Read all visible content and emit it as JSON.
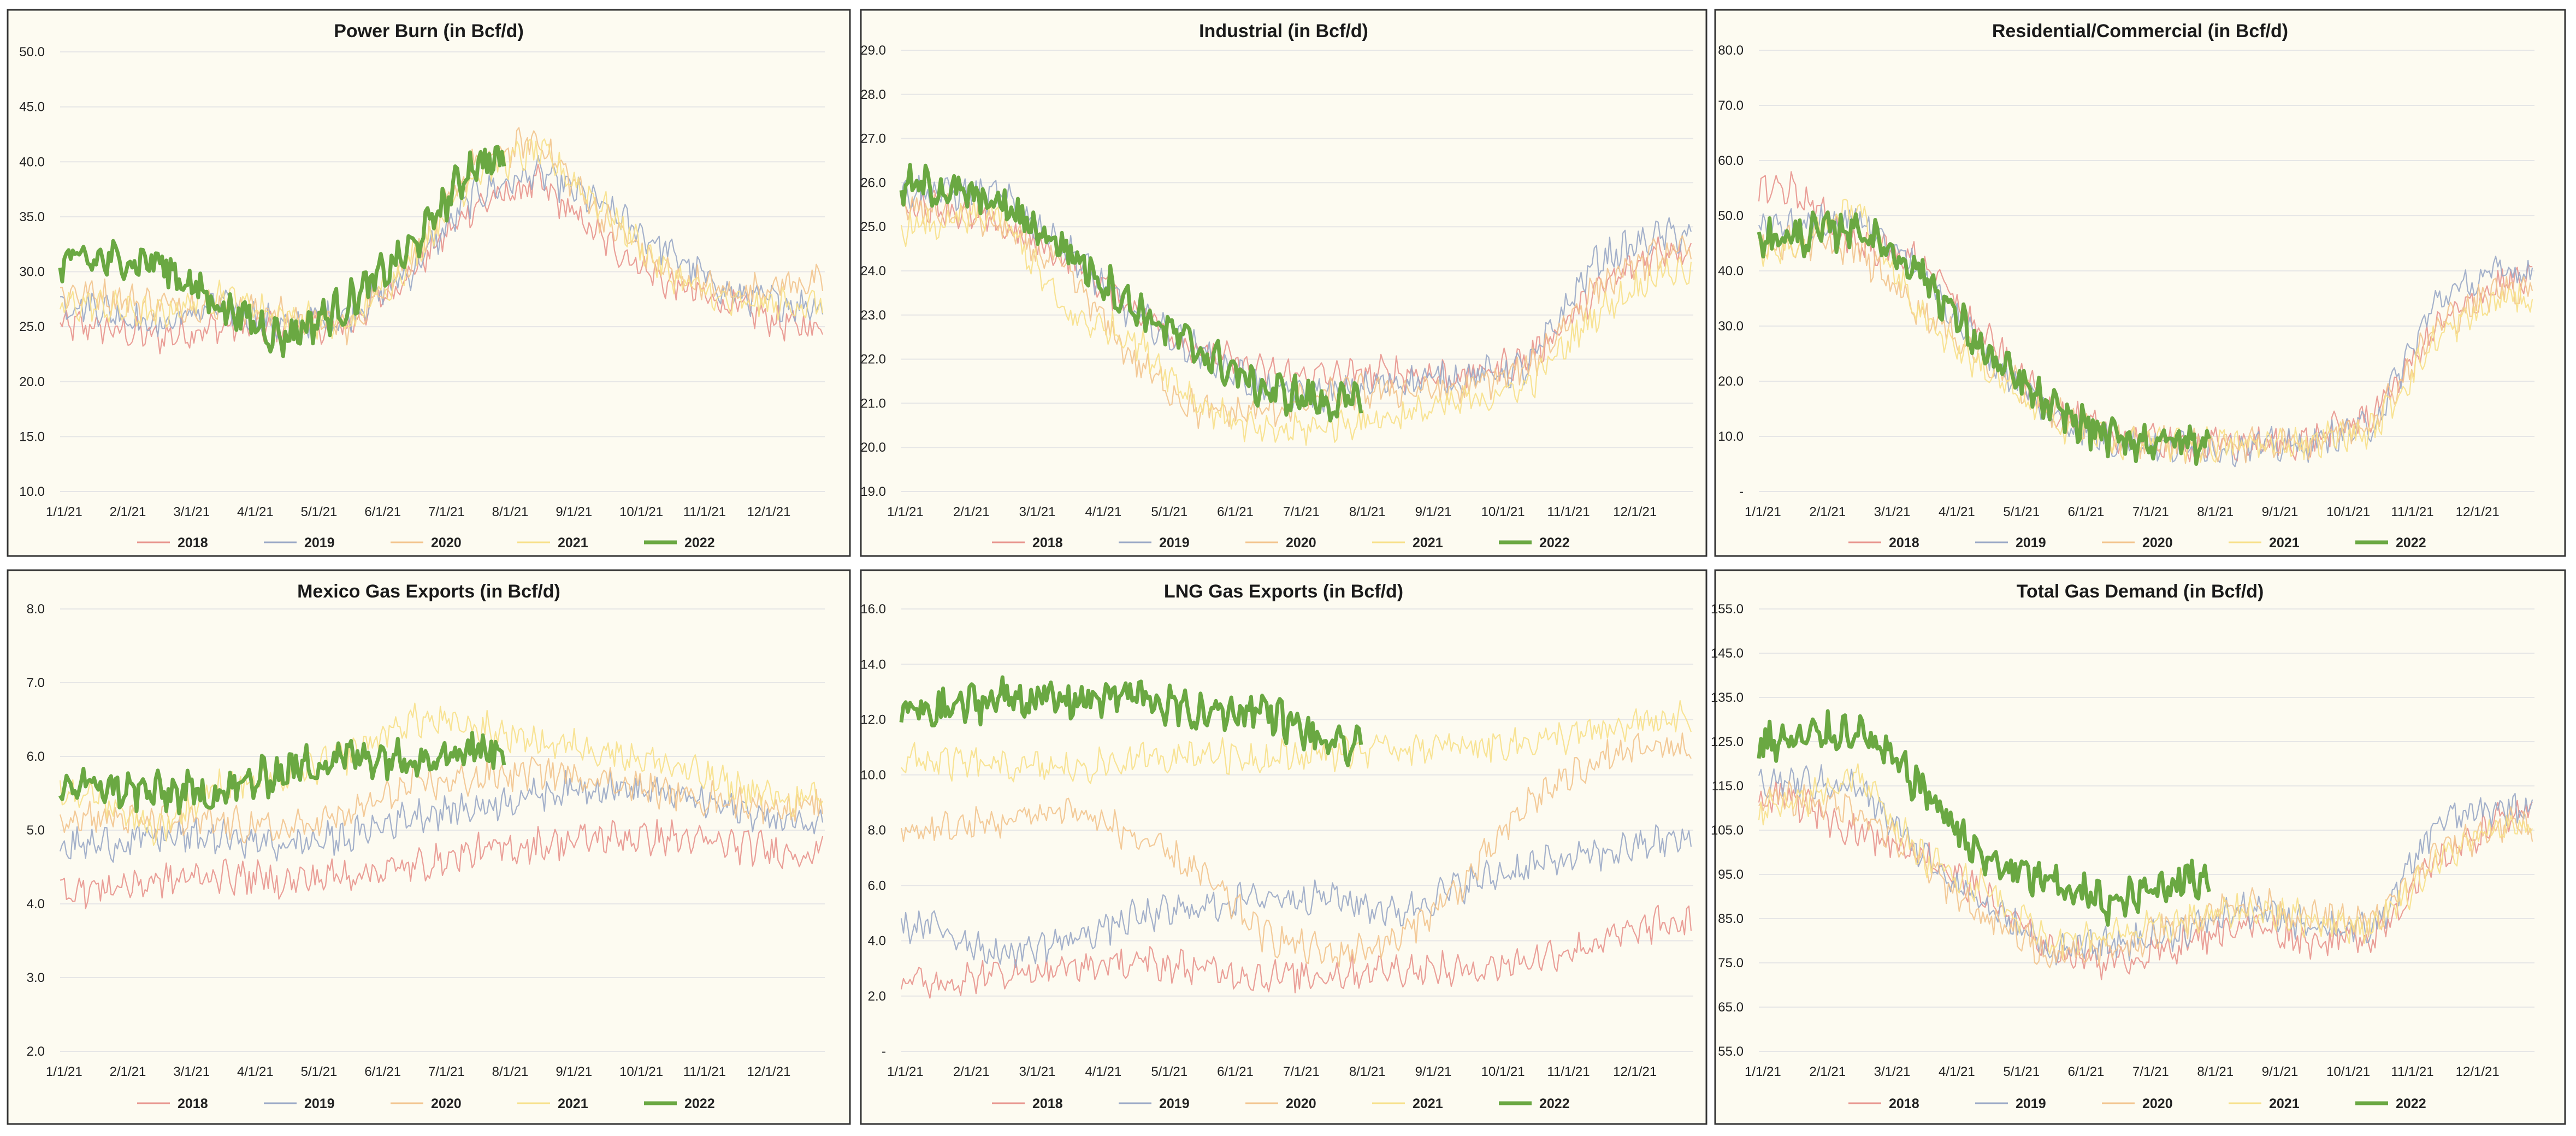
{
  "colors": {
    "background": "#fdfbf1",
    "border": "#333333",
    "grid": "#e6e6e6",
    "series": {
      "2018": "#e8958e",
      "2019": "#9aa8c6",
      "2020": "#f2c48e",
      "2021": "#f7e08a",
      "2022": "#6aa842"
    }
  },
  "x_tick_labels": [
    "1/1/21",
    "2/1/21",
    "3/1/21",
    "4/1/21",
    "5/1/21",
    "6/1/21",
    "7/1/21",
    "8/1/21",
    "9/1/21",
    "10/1/21",
    "11/1/21",
    "12/1/21"
  ],
  "legend_names": [
    "2018",
    "2019",
    "2020",
    "2021",
    "2022"
  ],
  "chart_data": [
    {
      "type": "line",
      "title": "Power Burn (in Bcf/d)",
      "ylim": [
        10,
        50
      ],
      "yticks": [
        "50.0",
        "45.0",
        "40.0",
        "35.0",
        "30.0",
        "25.0",
        "20.0",
        "15.0",
        "10.0"
      ],
      "series": [
        {
          "name": "2018",
          "months": [
            25,
            24,
            25,
            25,
            25,
            30,
            36,
            38,
            33,
            29,
            27,
            25
          ]
        },
        {
          "name": "2019",
          "months": [
            27,
            25,
            27,
            25,
            26,
            30,
            37,
            39,
            36,
            32,
            28,
            27
          ]
        },
        {
          "name": "2020",
          "months": [
            28,
            27,
            27,
            26,
            25,
            31,
            40,
            42,
            35,
            30,
            28,
            29
          ]
        },
        {
          "name": "2021",
          "months": [
            27,
            26,
            28,
            26,
            25,
            31,
            39,
            41,
            36,
            30,
            27,
            27
          ]
        },
        {
          "name": "2022",
          "months": [
            31,
            31,
            27,
            24,
            27,
            32,
            40
          ]
        }
      ]
    },
    {
      "type": "line",
      "title": "Industrial (in Bcf/d)",
      "ylim": [
        19,
        29
      ],
      "yticks": [
        "29.0",
        "28.0",
        "27.0",
        "26.0",
        "25.0",
        "24.0",
        "23.0",
        "22.0",
        "21.0",
        "20.0",
        "19.0"
      ],
      "series": [
        {
          "name": "2018",
          "months": [
            25.5,
            25,
            24.3,
            23.2,
            22.2,
            21.7,
            21.6,
            21.7,
            21.6,
            22,
            23.5,
            24.5
          ]
        },
        {
          "name": "2019",
          "months": [
            25.8,
            25.7,
            24.5,
            23,
            22.2,
            21.3,
            21.2,
            21.5,
            21.6,
            21.8,
            24.2,
            24.8
          ]
        },
        {
          "name": "2020",
          "months": [
            25.4,
            25,
            24,
            22,
            20.8,
            20.8,
            21.2,
            21.3,
            21.3,
            21.8,
            23.6,
            24.4
          ]
        },
        {
          "name": "2021",
          "months": [
            25,
            25.3,
            23,
            22.5,
            21,
            20.3,
            20.5,
            20.7,
            21,
            21.4,
            23,
            24
          ]
        },
        {
          "name": "2022",
          "months": [
            25.9,
            25.5,
            24.5,
            23.2,
            22.2,
            21.3,
            21
          ]
        }
      ]
    },
    {
      "type": "line",
      "title": "Residential/Commercial (in Bcf/d)",
      "ylim": [
        0,
        80
      ],
      "yticks": [
        "80.0",
        "70.0",
        "60.0",
        "50.0",
        "40.0",
        "30.0",
        "20.0",
        "10.0",
        "-"
      ],
      "series": [
        {
          "name": "2018",
          "months": [
            55,
            45,
            42,
            28,
            15,
            10,
            8.5,
            8.5,
            9,
            14,
            30,
            38
          ]
        },
        {
          "name": "2019",
          "months": [
            48,
            50,
            40,
            25,
            14,
            9,
            8,
            8,
            8.5,
            12,
            35,
            40
          ]
        },
        {
          "name": "2020",
          "months": [
            45,
            44,
            33,
            24,
            15,
            9,
            8.5,
            8.5,
            9,
            13,
            30,
            37
          ]
        },
        {
          "name": "2021",
          "months": [
            44,
            52,
            32,
            22,
            13,
            9,
            8.5,
            8.5,
            9,
            11,
            28,
            35
          ]
        },
        {
          "name": "2022",
          "months": [
            46,
            48,
            40,
            25,
            15,
            9.5,
            9
          ]
        }
      ]
    },
    {
      "type": "line",
      "title": "Mexico Gas Exports (in Bcf/d)",
      "ylim": [
        2,
        8
      ],
      "yticks": [
        "8.0",
        "7.0",
        "6.0",
        "5.0",
        "4.0",
        "3.0",
        "2.0"
      ],
      "series": [
        {
          "name": "2018",
          "months": [
            4.2,
            4.3,
            4.4,
            4.3,
            4.4,
            4.5,
            4.7,
            4.8,
            4.9,
            4.9,
            4.8,
            4.7
          ]
        },
        {
          "name": "2019",
          "months": [
            4.8,
            4.9,
            4.9,
            4.8,
            4.9,
            5.2,
            5.3,
            5.5,
            5.6,
            5.5,
            5.3,
            5.1
          ]
        },
        {
          "name": "2020",
          "months": [
            5.2,
            5.1,
            5.1,
            5.0,
            5.2,
            5.6,
            5.7,
            5.8,
            5.7,
            5.5,
            5.4,
            5.3
          ]
        },
        {
          "name": "2021",
          "months": [
            5.5,
            5.0,
            5.6,
            5.7,
            6.0,
            6.5,
            6.4,
            6.2,
            6.1,
            5.9,
            5.6,
            5.4
          ]
        },
        {
          "name": "2022",
          "months": [
            5.6,
            5.5,
            5.5,
            5.8,
            6.0,
            6.0,
            6.1
          ]
        }
      ]
    },
    {
      "type": "line",
      "title": "LNG Gas Exports (in Bcf/d)",
      "ylim": [
        0,
        16
      ],
      "yticks": [
        "16.0",
        "14.0",
        "12.0",
        "10.0",
        "8.0",
        "6.0",
        "4.0",
        "2.0",
        "-"
      ],
      "series": [
        {
          "name": "2018",
          "months": [
            2.5,
            2.8,
            3.0,
            3.2,
            3.0,
            2.7,
            2.8,
            3.0,
            2.9,
            3.3,
            3.9,
            4.6
          ]
        },
        {
          "name": "2019",
          "months": [
            4.5,
            3.5,
            4.0,
            4.8,
            5.2,
            5.6,
            5.6,
            5.0,
            6.0,
            6.7,
            7.1,
            7.6
          ]
        },
        {
          "name": "2020",
          "months": [
            8.0,
            8.3,
            8.8,
            7.8,
            6.5,
            4.2,
            3.5,
            4.0,
            6.0,
            9.0,
            10.5,
            11.0
          ]
        },
        {
          "name": "2021",
          "months": [
            10.5,
            10.3,
            10.2,
            10.5,
            10.8,
            10.6,
            10.8,
            11.0,
            11.0,
            11.2,
            11.5,
            12.0
          ]
        },
        {
          "name": "2022",
          "months": [
            12.3,
            12.8,
            12.7,
            12.9,
            12.2,
            12.4,
            11.0
          ]
        }
      ]
    },
    {
      "type": "line",
      "title": "Total Gas Demand (in Bcf/d)",
      "ylim": [
        55,
        155
      ],
      "yticks": [
        "155.0",
        "145.0",
        "135.0",
        "125.0",
        "115.0",
        "105.0",
        "95.0",
        "85.0",
        "75.0",
        "65.0",
        "55.0"
      ],
      "series": [
        {
          "name": "2018",
          "months": [
            112,
            105,
            100,
            90,
            78,
            75,
            79,
            84,
            80,
            81,
            98,
            108
          ]
        },
        {
          "name": "2019",
          "months": [
            116,
            115,
            100,
            88,
            78,
            79,
            82,
            87,
            84,
            82,
            107,
            110
          ]
        },
        {
          "name": "2020",
          "months": [
            112,
            110,
            98,
            85,
            77,
            78,
            84,
            89,
            85,
            84,
            100,
            106
          ]
        },
        {
          "name": "2021",
          "months": [
            110,
            118,
            99,
            92,
            80,
            81,
            84,
            87,
            85,
            83,
            98,
            106
          ]
        },
        {
          "name": "2022",
          "months": [
            125,
            128,
            115,
            98,
            93,
            88,
            94
          ]
        }
      ]
    }
  ]
}
